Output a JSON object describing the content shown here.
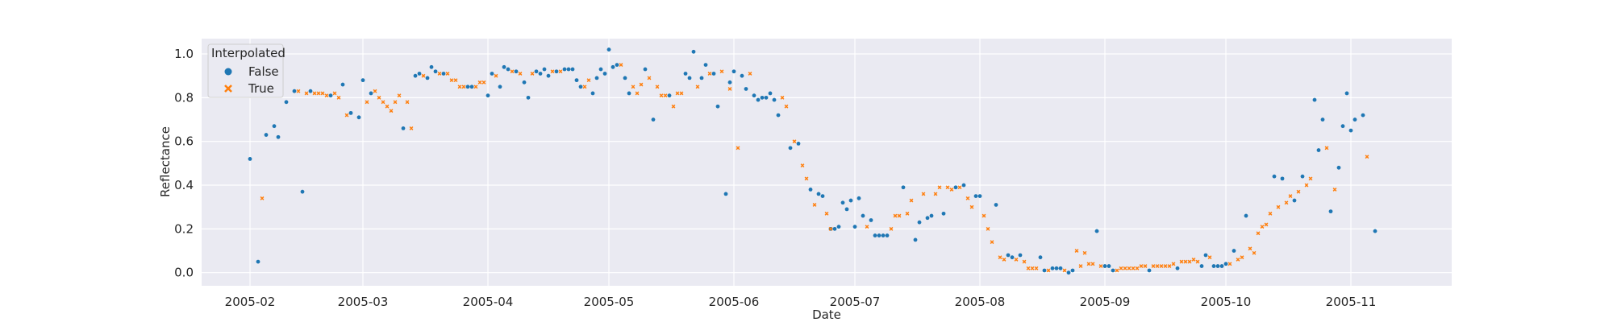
{
  "chart_data": {
    "type": "scatter",
    "title": "",
    "xlabel": "Date",
    "ylabel": "Reflectance",
    "xlim": [
      "2005-01-20",
      "2005-11-26"
    ],
    "ylim": [
      -0.06,
      1.07
    ],
    "x_ticks": [
      "2005-02-01",
      "2005-03-01",
      "2005-04-01",
      "2005-05-01",
      "2005-06-01",
      "2005-07-01",
      "2005-08-01",
      "2005-09-01",
      "2005-10-01",
      "2005-11-01"
    ],
    "x_tick_labels": [
      "2005-02",
      "2005-03",
      "2005-04",
      "2005-05",
      "2005-06",
      "2005-07",
      "2005-08",
      "2005-09",
      "2005-10",
      "2005-11"
    ],
    "y_ticks": [
      0.0,
      0.2,
      0.4,
      0.6,
      0.8,
      1.0
    ],
    "y_tick_labels": [
      "0.0",
      "0.2",
      "0.4",
      "0.6",
      "0.8",
      "1.0"
    ],
    "grid": true,
    "legend": {
      "title": "Interpolated",
      "position": "upper-left",
      "entries": [
        {
          "label": "False",
          "marker": "circle",
          "color": "#1f77b4"
        },
        {
          "label": "True",
          "marker": "x",
          "color": "#ff7f0e"
        }
      ]
    },
    "colors": {
      "background": "#eaeaf2",
      "grid": "#ffffff",
      "false": "#1f77b4",
      "true": "#ff7f0e"
    },
    "series": [
      {
        "name": "False",
        "marker": "circle",
        "x": [
          "2005-02-01",
          "2005-02-03",
          "2005-02-05",
          "2005-02-07",
          "2005-02-08",
          "2005-02-10",
          "2005-02-12",
          "2005-02-14",
          "2005-02-16",
          "2005-02-21",
          "2005-02-24",
          "2005-02-26",
          "2005-02-28",
          "2005-03-01",
          "2005-03-03",
          "2005-03-11",
          "2005-03-14",
          "2005-03-15",
          "2005-03-17",
          "2005-03-18",
          "2005-03-19",
          "2005-03-21",
          "2005-03-27",
          "2005-03-28",
          "2005-04-01",
          "2005-04-02",
          "2005-04-04",
          "2005-04-05",
          "2005-04-06",
          "2005-04-08",
          "2005-04-10",
          "2005-04-11",
          "2005-04-13",
          "2005-04-14",
          "2005-04-15",
          "2005-04-16",
          "2005-04-18",
          "2005-04-20",
          "2005-04-21",
          "2005-04-22",
          "2005-04-23",
          "2005-04-24",
          "2005-04-27",
          "2005-04-28",
          "2005-04-29",
          "2005-04-30",
          "2005-05-01",
          "2005-05-02",
          "2005-05-03",
          "2005-05-05",
          "2005-05-06",
          "2005-05-10",
          "2005-05-12",
          "2005-05-16",
          "2005-05-20",
          "2005-05-21",
          "2005-05-22",
          "2005-05-24",
          "2005-05-25",
          "2005-05-27",
          "2005-05-28",
          "2005-05-30",
          "2005-05-31",
          "2005-06-01",
          "2005-06-03",
          "2005-06-04",
          "2005-06-06",
          "2005-06-07",
          "2005-06-08",
          "2005-06-09",
          "2005-06-10",
          "2005-06-11",
          "2005-06-12",
          "2005-06-15",
          "2005-06-17",
          "2005-06-20",
          "2005-06-22",
          "2005-06-23",
          "2005-06-25",
          "2005-06-26",
          "2005-06-27",
          "2005-06-28",
          "2005-06-29",
          "2005-06-30",
          "2005-07-01",
          "2005-07-02",
          "2005-07-03",
          "2005-07-05",
          "2005-07-06",
          "2005-07-07",
          "2005-07-08",
          "2005-07-09",
          "2005-07-13",
          "2005-07-16",
          "2005-07-17",
          "2005-07-19",
          "2005-07-20",
          "2005-07-23",
          "2005-07-26",
          "2005-07-28",
          "2005-07-31",
          "2005-08-01",
          "2005-08-05",
          "2005-08-08",
          "2005-08-09",
          "2005-08-11",
          "2005-08-16",
          "2005-08-17",
          "2005-08-19",
          "2005-08-20",
          "2005-08-21",
          "2005-08-23",
          "2005-08-24",
          "2005-08-30",
          "2005-09-01",
          "2005-09-02",
          "2005-09-03",
          "2005-09-12",
          "2005-09-19",
          "2005-09-25",
          "2005-09-26",
          "2005-09-28",
          "2005-09-29",
          "2005-09-30",
          "2005-10-01",
          "2005-10-03",
          "2005-10-06",
          "2005-10-13",
          "2005-10-15",
          "2005-10-18",
          "2005-10-20",
          "2005-10-23",
          "2005-10-24",
          "2005-10-25",
          "2005-10-27",
          "2005-10-29",
          "2005-10-30",
          "2005-10-31",
          "2005-11-01",
          "2005-11-02",
          "2005-11-04",
          "2005-11-07"
        ],
        "y": [
          0.52,
          0.05,
          0.63,
          0.67,
          0.62,
          0.78,
          0.83,
          0.37,
          0.83,
          0.81,
          0.86,
          0.73,
          0.71,
          0.88,
          0.82,
          0.66,
          0.9,
          0.91,
          0.89,
          0.94,
          0.92,
          0.91,
          0.85,
          0.85,
          0.81,
          0.91,
          0.85,
          0.94,
          0.93,
          0.92,
          0.87,
          0.8,
          0.92,
          0.91,
          0.93,
          0.9,
          0.92,
          0.93,
          0.93,
          0.93,
          0.88,
          0.85,
          0.82,
          0.89,
          0.93,
          0.91,
          1.02,
          0.94,
          0.95,
          0.89,
          0.82,
          0.93,
          0.7,
          0.81,
          0.91,
          0.89,
          1.01,
          0.89,
          0.95,
          0.91,
          0.76,
          0.36,
          0.87,
          0.92,
          0.9,
          0.84,
          0.81,
          0.79,
          0.8,
          0.8,
          0.82,
          0.79,
          0.72,
          0.57,
          0.59,
          0.38,
          0.36,
          0.35,
          0.2,
          0.2,
          0.21,
          0.32,
          0.29,
          0.33,
          0.21,
          0.34,
          0.26,
          0.24,
          0.17,
          0.17,
          0.17,
          0.17,
          0.39,
          0.15,
          0.23,
          0.25,
          0.26,
          0.27,
          0.39,
          0.4,
          0.35,
          0.35,
          0.31,
          0.08,
          0.07,
          0.08,
          0.07,
          0.01,
          0.02,
          0.02,
          0.02,
          0.0,
          0.01,
          0.19,
          0.03,
          0.03,
          0.01,
          0.01,
          0.02,
          0.03,
          0.08,
          0.03,
          0.03,
          0.03,
          0.04,
          0.1,
          0.26,
          0.44,
          0.43,
          0.33,
          0.44,
          0.79,
          0.56,
          0.7,
          0.28,
          0.48,
          0.67,
          0.82,
          0.65,
          0.7,
          0.72,
          0.19
        ]
      },
      {
        "name": "True",
        "marker": "x",
        "x": [
          "2005-02-04",
          "2005-02-13",
          "2005-02-15",
          "2005-02-17",
          "2005-02-18",
          "2005-02-19",
          "2005-02-20",
          "2005-02-22",
          "2005-02-23",
          "2005-02-25",
          "2005-03-02",
          "2005-03-04",
          "2005-03-05",
          "2005-03-06",
          "2005-03-07",
          "2005-03-08",
          "2005-03-09",
          "2005-03-10",
          "2005-03-12",
          "2005-03-13",
          "2005-03-16",
          "2005-03-20",
          "2005-03-22",
          "2005-03-23",
          "2005-03-24",
          "2005-03-25",
          "2005-03-26",
          "2005-03-29",
          "2005-03-30",
          "2005-03-31",
          "2005-04-03",
          "2005-04-07",
          "2005-04-09",
          "2005-04-12",
          "2005-04-17",
          "2005-04-19",
          "2005-04-25",
          "2005-04-26",
          "2005-05-04",
          "2005-05-07",
          "2005-05-08",
          "2005-05-09",
          "2005-05-11",
          "2005-05-13",
          "2005-05-14",
          "2005-05-15",
          "2005-05-17",
          "2005-05-18",
          "2005-05-19",
          "2005-05-23",
          "2005-05-26",
          "2005-05-29",
          "2005-05-31",
          "2005-06-02",
          "2005-06-05",
          "2005-06-13",
          "2005-06-14",
          "2005-06-16",
          "2005-06-18",
          "2005-06-19",
          "2005-06-21",
          "2005-06-24",
          "2005-06-25",
          "2005-07-04",
          "2005-07-10",
          "2005-07-11",
          "2005-07-12",
          "2005-07-14",
          "2005-07-15",
          "2005-07-18",
          "2005-07-21",
          "2005-07-22",
          "2005-07-24",
          "2005-07-25",
          "2005-07-27",
          "2005-07-29",
          "2005-07-30",
          "2005-08-02",
          "2005-08-03",
          "2005-08-04",
          "2005-08-06",
          "2005-08-07",
          "2005-08-10",
          "2005-08-12",
          "2005-08-13",
          "2005-08-14",
          "2005-08-15",
          "2005-08-18",
          "2005-08-22",
          "2005-08-25",
          "2005-08-26",
          "2005-08-27",
          "2005-08-28",
          "2005-08-29",
          "2005-08-31",
          "2005-09-04",
          "2005-09-05",
          "2005-09-06",
          "2005-09-07",
          "2005-09-08",
          "2005-09-09",
          "2005-09-10",
          "2005-09-11",
          "2005-09-13",
          "2005-09-14",
          "2005-09-15",
          "2005-09-16",
          "2005-09-17",
          "2005-09-18",
          "2005-09-20",
          "2005-09-21",
          "2005-09-22",
          "2005-09-23",
          "2005-09-24",
          "2005-09-27",
          "2005-10-02",
          "2005-10-04",
          "2005-10-05",
          "2005-10-07",
          "2005-10-08",
          "2005-10-09",
          "2005-10-10",
          "2005-10-11",
          "2005-10-12",
          "2005-10-14",
          "2005-10-16",
          "2005-10-17",
          "2005-10-19",
          "2005-10-21",
          "2005-10-22",
          "2005-10-26",
          "2005-10-28",
          "2005-11-05"
        ],
        "y": [
          0.34,
          0.83,
          0.82,
          0.82,
          0.82,
          0.82,
          0.81,
          0.82,
          0.8,
          0.72,
          0.78,
          0.83,
          0.8,
          0.78,
          0.76,
          0.74,
          0.78,
          0.81,
          0.78,
          0.66,
          0.9,
          0.91,
          0.91,
          0.88,
          0.88,
          0.85,
          0.85,
          0.85,
          0.87,
          0.87,
          0.9,
          0.92,
          0.91,
          0.91,
          0.92,
          0.92,
          0.85,
          0.88,
          0.95,
          0.85,
          0.82,
          0.86,
          0.89,
          0.85,
          0.81,
          0.81,
          0.76,
          0.82,
          0.82,
          0.85,
          0.91,
          0.92,
          0.84,
          0.57,
          0.91,
          0.8,
          0.76,
          0.6,
          0.49,
          0.43,
          0.31,
          0.27,
          0.2,
          0.21,
          0.2,
          0.26,
          0.26,
          0.27,
          0.33,
          0.36,
          0.36,
          0.39,
          0.39,
          0.38,
          0.39,
          0.34,
          0.3,
          0.26,
          0.2,
          0.14,
          0.07,
          0.06,
          0.06,
          0.05,
          0.02,
          0.02,
          0.02,
          0.01,
          0.01,
          0.1,
          0.03,
          0.09,
          0.04,
          0.04,
          0.03,
          0.01,
          0.02,
          0.02,
          0.02,
          0.02,
          0.02,
          0.03,
          0.03,
          0.03,
          0.03,
          0.03,
          0.03,
          0.03,
          0.04,
          0.05,
          0.05,
          0.05,
          0.06,
          0.05,
          0.07,
          0.04,
          0.06,
          0.07,
          0.11,
          0.09,
          0.18,
          0.21,
          0.22,
          0.27,
          0.3,
          0.32,
          0.35,
          0.37,
          0.4,
          0.43,
          0.57,
          0.38,
          0.53
        ]
      }
    ]
  }
}
